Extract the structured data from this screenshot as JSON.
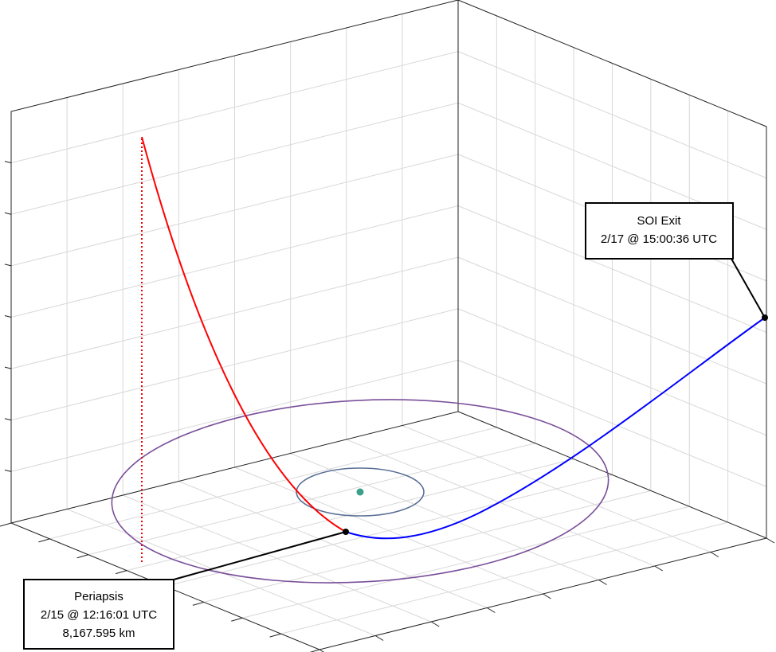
{
  "annotations": {
    "soi_exit": {
      "title": "SOI Exit",
      "time": "2/17 @ 15:00:36 UTC"
    },
    "periapsis": {
      "title": "Periapsis",
      "time": "2/15 @ 12:16:01 UTC",
      "distance": "8,167.595 km"
    }
  }
}
